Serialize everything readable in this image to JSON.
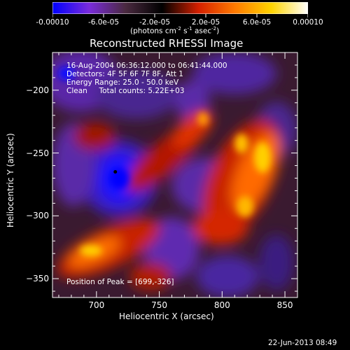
{
  "colorbar": {
    "tick_labels": [
      "-0.00010",
      "-6.0e-05",
      "-2.0e-05",
      "2.0e-05",
      "6.0e-05",
      "0.00010"
    ],
    "tick_values": [
      -0.0001,
      -6e-05,
      -2e-05,
      2e-05,
      6e-05,
      0.0001
    ],
    "units_text": "(photons cm",
    "units_sup1": "-2",
    "units_s": " s",
    "units_sup2": "-1",
    "units_asec": " asec",
    "units_sup3": "-2",
    "units_close": ")",
    "colors": [
      "#0000ff",
      "#7a2bdc",
      "#4a2a40",
      "#000000",
      "#d42000",
      "#ff7a00",
      "#ffd400",
      "#ffffff"
    ]
  },
  "chart_data": {
    "type": "heatmap",
    "title": "Reconstructed RHESSI Image",
    "xlabel": "Heliocentric X (arcsec)",
    "ylabel": "Heliocentric Y (arcsec)",
    "xlim": [
      665,
      860
    ],
    "ylim": [
      -365,
      -170
    ],
    "x_ticks": [
      700,
      750,
      800,
      850
    ],
    "y_ticks": [
      -200,
      -250,
      -300,
      -350
    ],
    "x_tick_labels": [
      "700",
      "750",
      "800",
      "850"
    ],
    "y_tick_labels": [
      "-200",
      "-250",
      "-300",
      "-350"
    ],
    "annotations": [
      "16-Aug-2004 06:36:12.000 to 06:41:44.000",
      "Detectors: 4F 5F 6F 7F 8F, Att 1",
      "Energy Range: 25.0 - 50.0 keV",
      "Clean     Total counts: 5.22E+03"
    ],
    "peak_label": "Position of Peak = [699,-326]",
    "marked_point": {
      "x": 715,
      "y": -265
    }
  },
  "footer_date": "22-Jun-2013 08:49"
}
